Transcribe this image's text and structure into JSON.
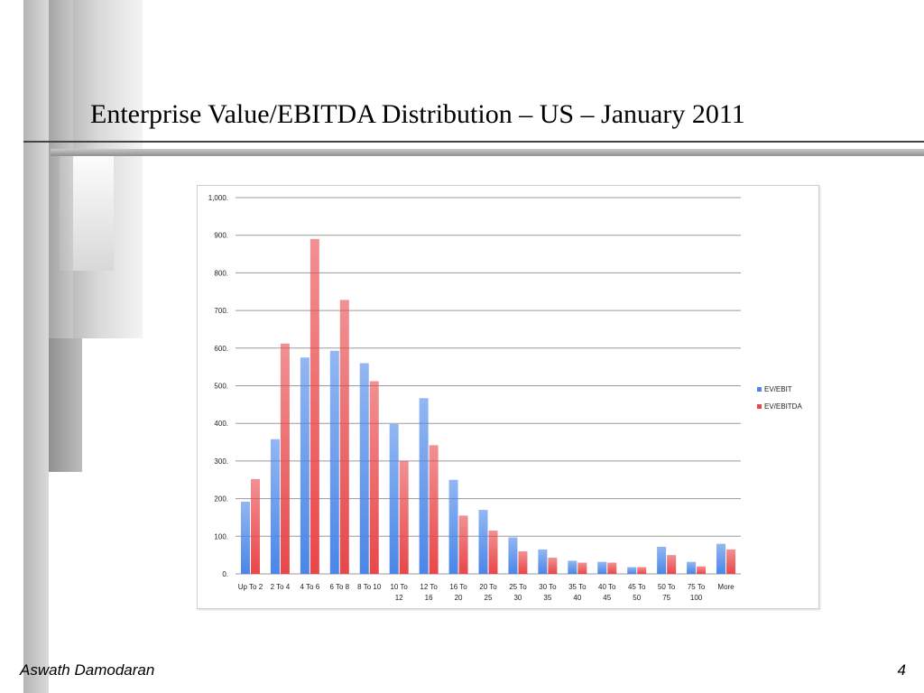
{
  "slide": {
    "title": "Enterprise Value/EBITDA Distribution – US – January 2011",
    "footer_author": "Aswath Damodaran",
    "page_number": "4"
  },
  "chart_data": {
    "type": "bar",
    "title": "",
    "xlabel": "",
    "ylabel": "",
    "ylim": [
      0,
      1000
    ],
    "yticks": [
      "0.",
      "100.",
      "200.",
      "300.",
      "400.",
      "500.",
      "600.",
      "700.",
      "800.",
      "900.",
      "1,000."
    ],
    "grid": true,
    "legend_position": "right",
    "categories": [
      [
        "Up To 2"
      ],
      [
        "2 To 4"
      ],
      [
        "4 To 6"
      ],
      [
        "6 To 8"
      ],
      [
        "8 To 10"
      ],
      [
        "10 To",
        "12"
      ],
      [
        "12 To",
        "16"
      ],
      [
        "16 To",
        "20"
      ],
      [
        "20 To",
        "25"
      ],
      [
        "25 To",
        "30"
      ],
      [
        "30 To",
        "35"
      ],
      [
        "35 To",
        "40"
      ],
      [
        "40 To",
        "45"
      ],
      [
        "45 To",
        "50"
      ],
      [
        "50 To",
        "75"
      ],
      [
        "75 To",
        "100"
      ],
      [
        "More"
      ]
    ],
    "series": [
      {
        "name": "EV/EBIT",
        "color": "#4a86e8",
        "values": [
          192,
          358,
          575,
          593,
          560,
          398,
          467,
          250,
          170,
          97,
          65,
          35,
          32,
          18,
          72,
          32,
          80
        ]
      },
      {
        "name": "EV/EBITDA",
        "color": "#e8474a",
        "values": [
          252,
          612,
          890,
          728,
          512,
          300,
          342,
          155,
          115,
          60,
          43,
          30,
          30,
          18,
          50,
          20,
          65
        ]
      }
    ]
  }
}
